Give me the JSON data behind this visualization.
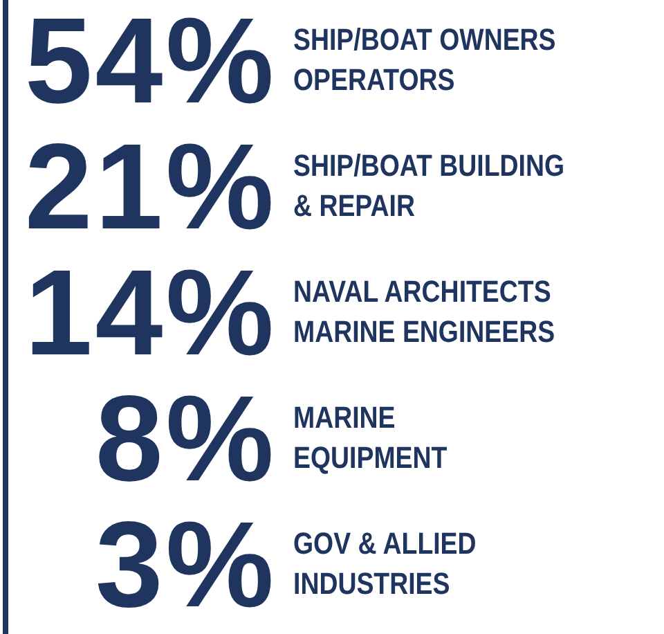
{
  "chart_data": {
    "type": "other",
    "categories": [
      "SHIP/BOAT OWNERS\nOPERATORS",
      "SHIP/BOAT BUILDING\n& REPAIR",
      "NAVAL ARCHITECTS\nMARINE ENGINEERS",
      "MARINE\nEQUIPMENT",
      "GOV & ALLIED\nINDUSTRIES"
    ],
    "values": [
      54,
      21,
      14,
      8,
      3
    ],
    "value_labels": [
      "54%",
      "21%",
      "14%",
      "8%",
      "3%"
    ],
    "color": "#1f3560"
  }
}
